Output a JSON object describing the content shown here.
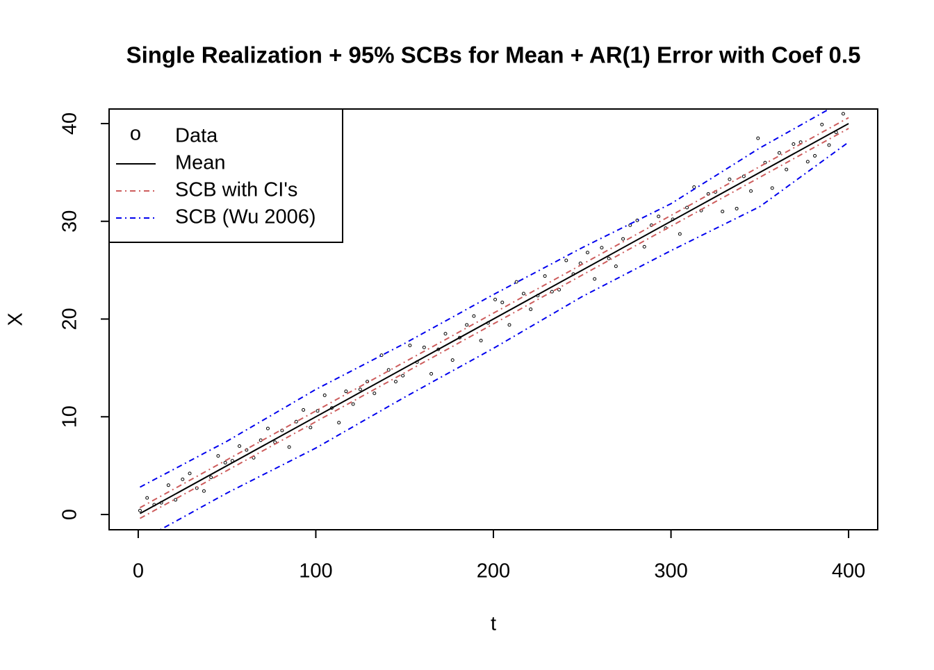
{
  "chart_data": {
    "type": "line",
    "title": "Single Realization + 95% SCBs for Mean + AR(1) Error with Coef 0.5",
    "xlabel": "t",
    "ylabel": "X",
    "xlim": [
      -16.4,
      416.4
    ],
    "ylim": [
      -1.56,
      41.49
    ],
    "xticks": [
      0,
      100,
      200,
      300,
      400
    ],
    "yticks": [
      0,
      10,
      20,
      30,
      40
    ],
    "grid": false,
    "legend": "top-left",
    "series": [
      {
        "name": "Data",
        "kind": "points",
        "symbol": "o",
        "color": "#000000",
        "x": [
          1,
          5,
          9,
          13,
          17,
          21,
          25,
          29,
          33,
          37,
          41,
          45,
          49,
          53,
          57,
          61,
          65,
          69,
          73,
          77,
          81,
          85,
          89,
          93,
          97,
          101,
          105,
          109,
          113,
          117,
          121,
          125,
          129,
          133,
          137,
          141,
          145,
          149,
          153,
          157,
          161,
          165,
          169,
          173,
          177,
          181,
          185,
          189,
          193,
          197,
          201,
          205,
          209,
          213,
          217,
          221,
          225,
          229,
          233,
          237,
          241,
          245,
          249,
          253,
          257,
          261,
          265,
          269,
          273,
          277,
          281,
          285,
          289,
          293,
          297,
          301,
          305,
          309,
          313,
          317,
          321,
          325,
          329,
          333,
          337,
          341,
          345,
          349,
          353,
          357,
          361,
          365,
          369,
          373,
          377,
          381,
          385,
          389,
          393,
          397
        ],
        "values": [
          0.4,
          1.7,
          1.0,
          1.2,
          3.0,
          1.5,
          3.6,
          4.2,
          2.7,
          2.4,
          3.8,
          6.0,
          5.3,
          5.5,
          7.0,
          6.6,
          5.8,
          7.6,
          8.8,
          7.4,
          8.6,
          6.9,
          9.5,
          10.7,
          8.9,
          10.6,
          12.2,
          10.9,
          9.4,
          12.6,
          11.3,
          12.8,
          13.6,
          12.4,
          16.3,
          14.8,
          13.6,
          14.2,
          17.3,
          15.6,
          17.1,
          14.4,
          16.9,
          18.5,
          15.8,
          18.1,
          19.4,
          20.3,
          17.8,
          19.6,
          22.0,
          21.7,
          19.4,
          23.8,
          22.6,
          21.0,
          22.4,
          24.4,
          22.8,
          23.0,
          26.0,
          24.6,
          25.7,
          26.8,
          24.1,
          27.3,
          26.2,
          25.4,
          28.2,
          29.6,
          30.1,
          27.4,
          29.6,
          30.5,
          29.3,
          30.2,
          28.7,
          31.4,
          33.5,
          31.1,
          32.8,
          33.0,
          31.0,
          34.3,
          31.3,
          34.6,
          33.1,
          38.5,
          36.0,
          33.4,
          37.0,
          35.3,
          37.9,
          38.1,
          36.1,
          36.7,
          39.9,
          37.8,
          39.1,
          41.0
        ]
      },
      {
        "name": "Mean",
        "kind": "line",
        "dash": "solid",
        "color": "#000000",
        "x": [
          1,
          400
        ],
        "values": [
          0.1,
          40.0
        ]
      },
      {
        "name": "SCB with CI's",
        "kind": "band",
        "dash": "dashdot",
        "color": "#cd5c5c",
        "x": [
          1,
          50,
          100,
          150,
          200,
          250,
          300,
          350,
          400
        ],
        "upper": [
          0.7,
          5.6,
          10.6,
          15.6,
          20.6,
          25.6,
          30.6,
          35.6,
          40.6
        ],
        "lower": [
          -0.4,
          4.5,
          9.5,
          14.5,
          19.5,
          24.5,
          29.5,
          34.5,
          39.5
        ]
      },
      {
        "name": "SCB (Wu 2006)",
        "kind": "band",
        "dash": "dashdot",
        "color": "#0000ee",
        "x": [
          1,
          50,
          100,
          150,
          200,
          250,
          300,
          350,
          400
        ],
        "upper": [
          2.8,
          7.5,
          12.8,
          17.5,
          22.5,
          27.3,
          31.8,
          37.5,
          42.6
        ],
        "lower": [
          -2.7,
          2.2,
          6.8,
          12.0,
          17.0,
          22.3,
          27.0,
          31.5,
          38.1
        ]
      }
    ]
  }
}
